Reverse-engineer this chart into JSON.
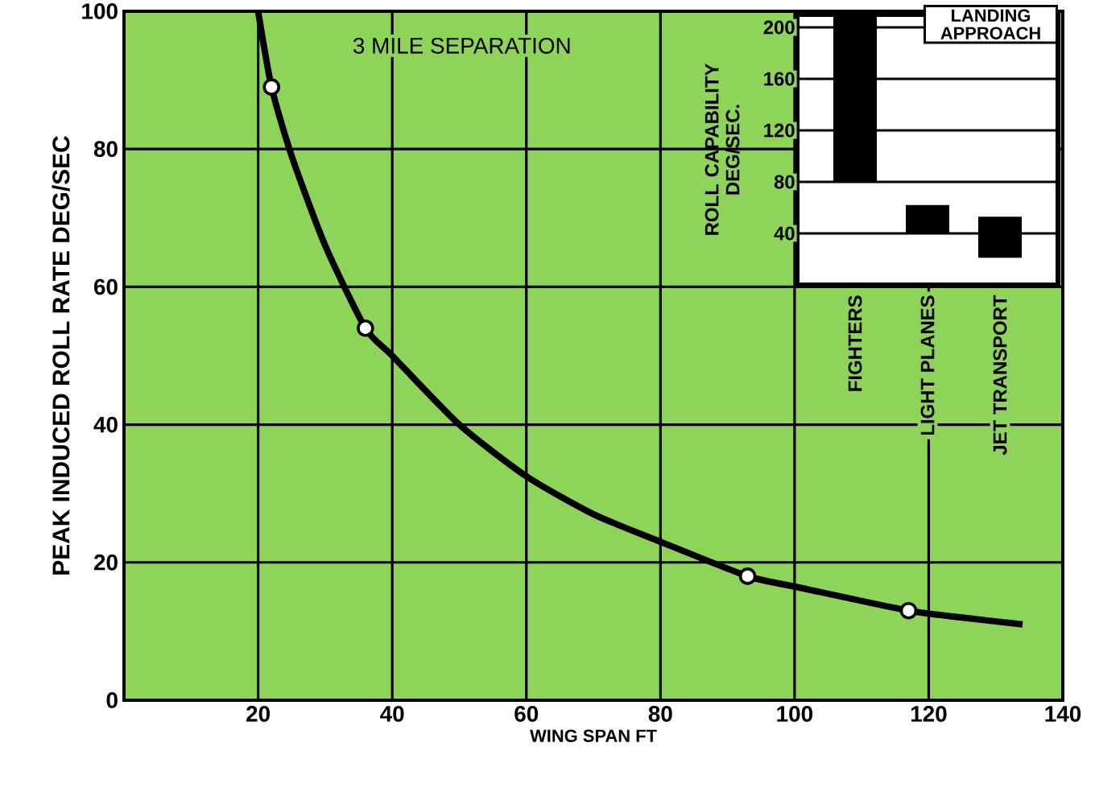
{
  "chart_data": [
    {
      "type": "line",
      "xlabel": "WING SPAN FT",
      "ylabel": "PEAK INDUCED ROLL RATE DEG/SEC",
      "xlim": [
        0,
        140
      ],
      "xticks": [
        20,
        40,
        60,
        80,
        100,
        120,
        140
      ],
      "ylim": [
        0,
        100
      ],
      "yticks": [
        0,
        20,
        40,
        60,
        80,
        100
      ],
      "grid": true,
      "annotations": [
        "3 MILE SEPARATION"
      ],
      "series": [
        {
          "type": "line",
          "color": "#000000",
          "marker": "none",
          "x": [
            20,
            22,
            25,
            30,
            36,
            40,
            50,
            60,
            70,
            80,
            93,
            100,
            117,
            125,
            134
          ],
          "values": [
            100,
            89,
            79,
            66,
            54,
            50,
            40,
            32.5,
            27,
            23,
            18,
            16.5,
            13,
            12,
            11
          ]
        },
        {
          "type": "scatter",
          "color": "#ffffff",
          "marker": "circle",
          "x": [
            22,
            36,
            93,
            117
          ],
          "values": [
            89,
            54,
            18,
            13
          ]
        }
      ]
    },
    {
      "type": "bar",
      "title": "LANDING APPROACH",
      "ylabel": "ROLL CAPABILITY DEG/SEC.",
      "categories": [
        "FIGHTERS",
        "LIGHT PLANES",
        "JET TRANSPORT"
      ],
      "base": [
        80,
        40,
        21
      ],
      "values": [
        130,
        22,
        32
      ],
      "color": "#000000",
      "ylim": [
        0,
        210
      ],
      "yticks": [
        40,
        80,
        120,
        160,
        200
      ],
      "grid": "y"
    }
  ]
}
